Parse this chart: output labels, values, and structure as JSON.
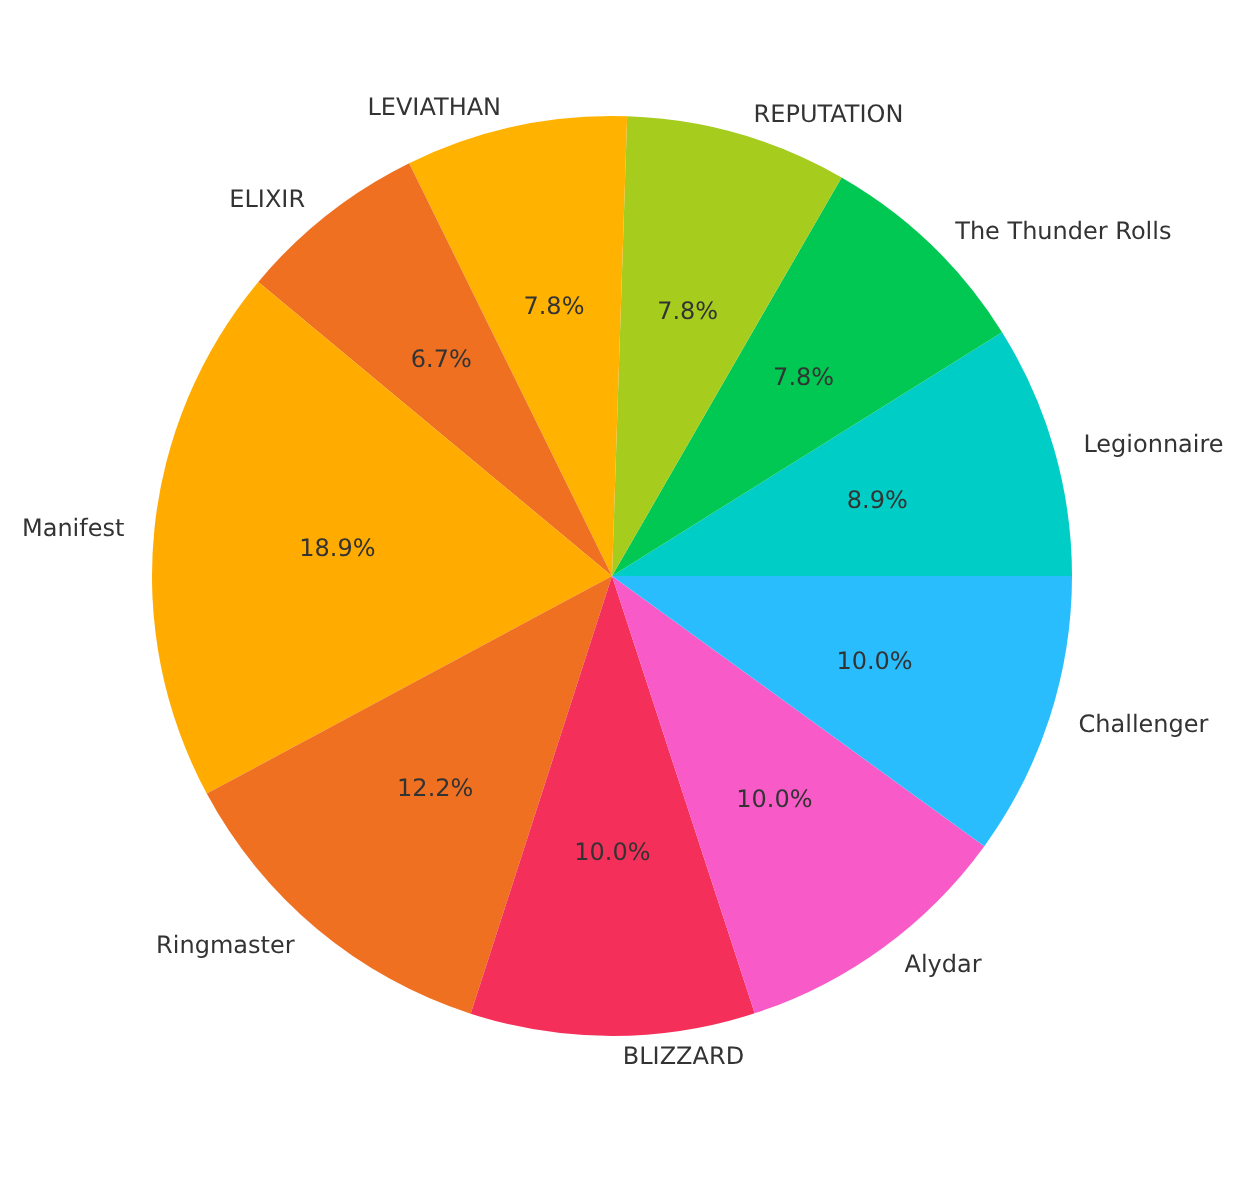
{
  "chart_data": {
    "type": "pie",
    "categories": [
      "Legionnaire",
      "The Thunder Rolls",
      "REPUTATION",
      "LEVIATHAN",
      "ELIXIR",
      "Manifest",
      "Ringmaster",
      "BLIZZARD",
      "Alydar",
      "Challenger"
    ],
    "values": [
      8.9,
      7.8,
      7.8,
      7.8,
      6.7,
      18.9,
      12.2,
      10.0,
      10.0,
      10.0
    ],
    "colors": [
      "#00cdc6",
      "#00c853",
      "#a6cc1e",
      "#ffb300",
      "#f07022",
      "#ffab00",
      "#f07022",
      "#f4305a",
      "#f85ac8",
      "#29bdfd"
    ],
    "value_labels": [
      "8.9%",
      "7.8%",
      "7.8%",
      "7.8%",
      "6.7%",
      "18.9%",
      "12.2%",
      "10.0%",
      "10.0%",
      "10.0%"
    ],
    "legend": false
  }
}
